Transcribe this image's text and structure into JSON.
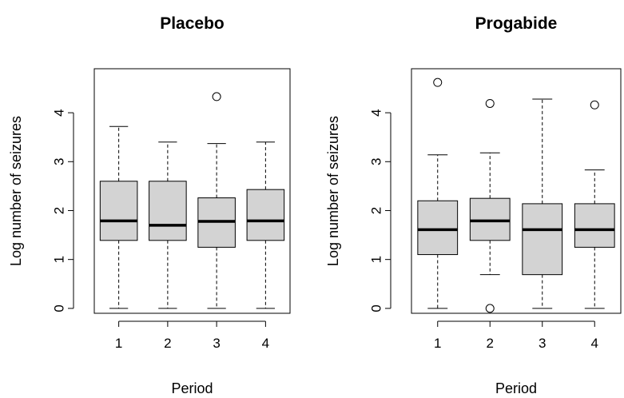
{
  "chart_data": [
    {
      "type": "boxplot",
      "title": "Placebo",
      "xlabel": "Period",
      "ylabel": "Log number of seizures",
      "categories": [
        "1",
        "2",
        "3",
        "4"
      ],
      "ylim": [
        -0.1,
        4.9
      ],
      "yticks": [
        "0",
        "1",
        "2",
        "3",
        "4"
      ],
      "fill": "#d3d3d3",
      "boxes": [
        {
          "whisker_low": 0,
          "q1": 1.39,
          "median": 1.79,
          "q3": 2.6,
          "whisker_high": 3.72,
          "outliers": []
        },
        {
          "whisker_low": 0,
          "q1": 1.39,
          "median": 1.7,
          "q3": 2.6,
          "whisker_high": 3.4,
          "outliers": []
        },
        {
          "whisker_low": 0,
          "q1": 1.25,
          "median": 1.78,
          "q3": 2.26,
          "whisker_high": 3.37,
          "outliers": [
            4.33
          ]
        },
        {
          "whisker_low": 0,
          "q1": 1.39,
          "median": 1.79,
          "q3": 2.43,
          "whisker_high": 3.4,
          "outliers": []
        }
      ]
    },
    {
      "type": "boxplot",
      "title": "Progabide",
      "xlabel": "Period",
      "ylabel": "Log number of seizures",
      "categories": [
        "1",
        "2",
        "3",
        "4"
      ],
      "ylim": [
        -0.1,
        4.9
      ],
      "yticks": [
        "0",
        "1",
        "2",
        "3",
        "4"
      ],
      "fill": "#d3d3d3",
      "boxes": [
        {
          "whisker_low": 0,
          "q1": 1.1,
          "median": 1.61,
          "q3": 2.2,
          "whisker_high": 3.14,
          "outliers": [
            4.62
          ]
        },
        {
          "whisker_low": 0.69,
          "q1": 1.39,
          "median": 1.79,
          "q3": 2.25,
          "whisker_high": 3.18,
          "outliers": [
            0,
            4.19
          ]
        },
        {
          "whisker_low": 0,
          "q1": 0.69,
          "median": 1.61,
          "q3": 2.14,
          "whisker_high": 4.28,
          "outliers": []
        },
        {
          "whisker_low": 0,
          "q1": 1.25,
          "median": 1.61,
          "q3": 2.14,
          "whisker_high": 2.83,
          "outliers": [
            4.16
          ]
        }
      ]
    }
  ]
}
